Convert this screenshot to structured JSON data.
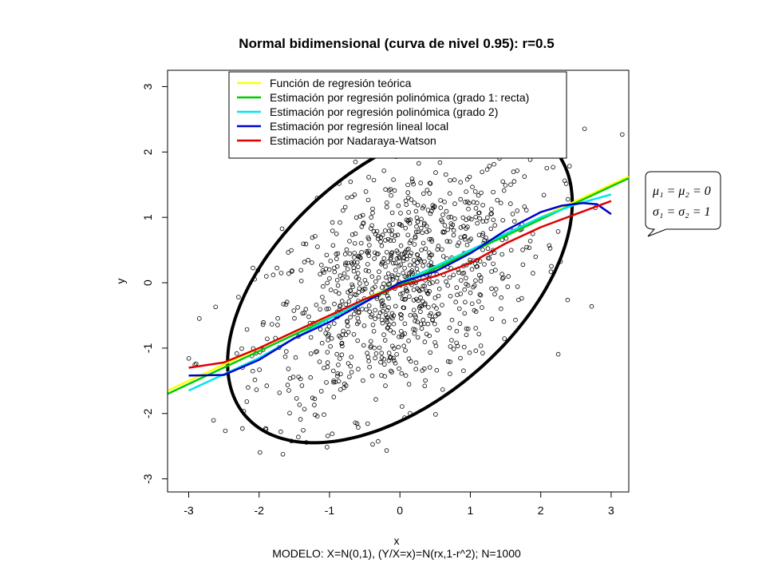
{
  "chart_data": {
    "type": "scatter",
    "title": "Normal bidimensional (curva de nivel 0.95): r=0.5",
    "xlabel": "x",
    "ylabel": "y",
    "subtitle": "MODELO: X=N(0,1), (Y/X=x)=N(rx,1-r^2); N=1000",
    "xlim": [
      -3.3,
      3.25
    ],
    "ylim": [
      -3.2,
      3.25
    ],
    "xticks": [
      "-3",
      "-2",
      "-1",
      "0",
      "1",
      "2",
      "3"
    ],
    "yticks": [
      "-3",
      "-2",
      "-1",
      "0",
      "1",
      "2",
      "3"
    ],
    "legend_position": "top",
    "legend": [
      {
        "label": "Función de regresión teórica",
        "color": "#ffff00"
      },
      {
        "label": "Estimación por regresión polinómica (grado 1: recta)",
        "color": "#00cc00"
      },
      {
        "label": "Estimación por regresión polinómica (grado 2)",
        "color": "#00e5ee"
      },
      {
        "label": "Estimación por regresión lineal local",
        "color": "#0000cc"
      },
      {
        "label": "Estimación por Nadaraya-Watson",
        "color": "#dd0000"
      }
    ],
    "annotation": {
      "line1": "μ₁ = μ₂ = 0",
      "line2": "σ₁ = σ₂ = 1"
    },
    "ellipse": {
      "r": 0.5,
      "level": 0.95,
      "color": "#000000"
    },
    "series": [
      {
        "name": "Función de regresión teórica",
        "color": "#ffff00",
        "x": [
          -3.3,
          3.25
        ],
        "y": [
          -1.65,
          1.625
        ]
      },
      {
        "name": "Estimación por regresión polinómica (grado 1: recta)",
        "color": "#00cc00",
        "x": [
          -3.3,
          3.25
        ],
        "y": [
          -1.7,
          1.6
        ]
      },
      {
        "name": "Estimación por regresión polinómica (grado 2)",
        "color": "#00e5ee",
        "x": [
          -3,
          -2.5,
          -2,
          -1.5,
          -1,
          -0.5,
          0,
          0.5,
          1,
          1.5,
          2,
          2.5,
          3
        ],
        "y": [
          -1.65,
          -1.4,
          -1.15,
          -0.85,
          -0.55,
          -0.27,
          0.0,
          0.25,
          0.5,
          0.75,
          1.0,
          1.2,
          1.35
        ]
      },
      {
        "name": "Estimación por regresión lineal local",
        "color": "#0000cc",
        "x": [
          -3,
          -2.5,
          -2,
          -1.5,
          -1,
          -0.5,
          0,
          0.5,
          1,
          1.5,
          2,
          2.3,
          2.6,
          2.8,
          3
        ],
        "y": [
          -1.42,
          -1.41,
          -1.18,
          -0.85,
          -0.6,
          -0.3,
          0.0,
          0.17,
          0.45,
          0.8,
          1.08,
          1.18,
          1.22,
          1.2,
          1.05
        ]
      },
      {
        "name": "Estimación por Nadaraya-Watson",
        "color": "#dd0000",
        "x": [
          -3,
          -2.5,
          -2,
          -1.5,
          -1,
          -0.5,
          0,
          0.5,
          1,
          1.5,
          2,
          2.5,
          3
        ],
        "y": [
          -1.3,
          -1.22,
          -1.0,
          -0.75,
          -0.5,
          -0.25,
          -0.05,
          0.1,
          0.3,
          0.6,
          0.85,
          1.05,
          1.25
        ]
      }
    ],
    "points_note": "",
    "n_points": 1000
  }
}
